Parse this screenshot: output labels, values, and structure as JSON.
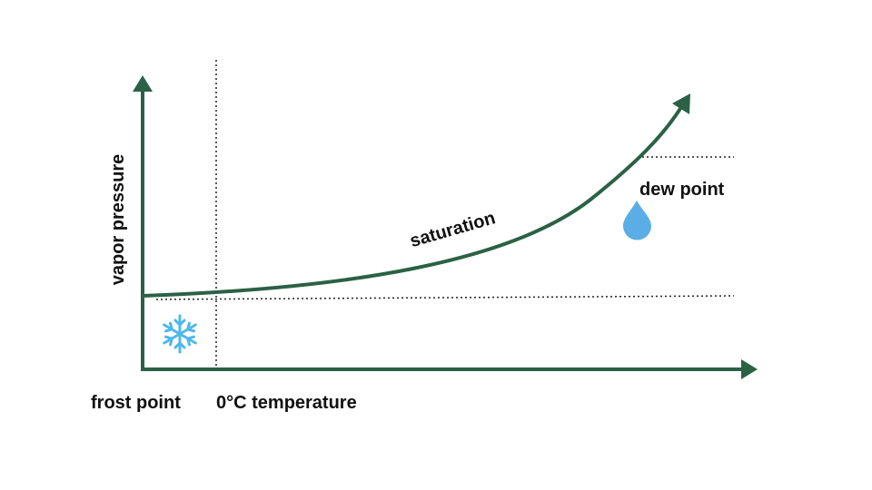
{
  "colors": {
    "axis": "#2b6146",
    "curve": "#2b6146",
    "guide": "#222222",
    "snowflake": "#4fb8ea",
    "drop": "#5aaee5"
  },
  "icons": {
    "frost": "snowflake-icon",
    "dew": "water-drop-icon"
  },
  "labels": {
    "y_axis": "vapor pressure",
    "curve": "saturation",
    "dew_point": "dew point",
    "frost_point": "frost point",
    "x_axis": "0°C temperature"
  }
}
